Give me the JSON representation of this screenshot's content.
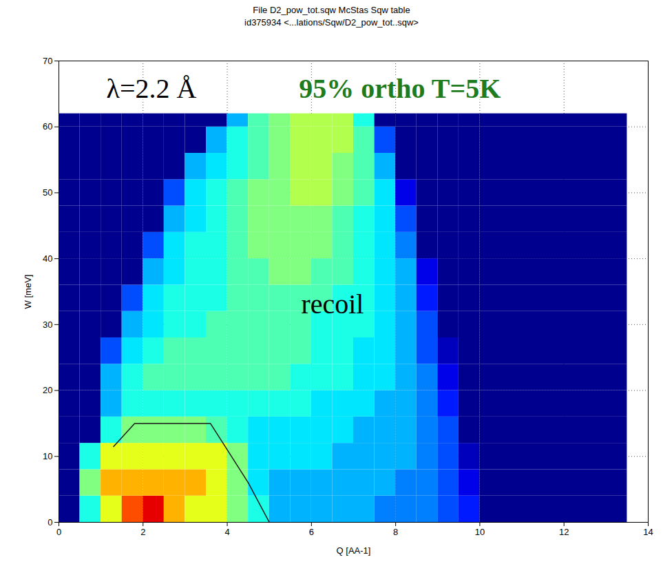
{
  "chart_data": {
    "type": "heatmap",
    "title": "File D2_pow_tot.sqw McStas Sqw table",
    "subtitle": "id375934 <...lations/Sqw/D2_pow_tot..sqw>",
    "x_label": "Q [AA-1]",
    "y_label": "W [meV]",
    "xlim": [
      0,
      14
    ],
    "ylim": [
      0,
      70
    ],
    "xticks": [
      0,
      2,
      4,
      6,
      8,
      10,
      12,
      14
    ],
    "yticks": [
      0,
      10,
      20,
      30,
      40,
      50,
      60,
      70
    ],
    "grid": true,
    "annotations": [
      {
        "text": "λ=2.2 Å",
        "color": "#000000"
      },
      {
        "text": "95% ortho T=5K",
        "color": "#1e7b1e"
      },
      {
        "text": "recoil",
        "color": "#000000"
      }
    ],
    "zlim": [
      0,
      10
    ],
    "cells": {
      "x_edges": [
        0,
        0.5,
        1,
        1.5,
        2,
        2.5,
        3,
        3.5,
        4,
        4.5,
        5,
        5.5,
        6,
        6.5,
        7,
        7.5,
        8,
        8.5,
        9,
        9.5,
        10,
        13.5
      ],
      "y_edges": [
        0,
        4,
        8,
        12,
        16,
        20,
        24,
        28,
        32,
        36,
        40,
        44,
        48,
        52,
        56,
        60,
        62
      ],
      "values": [
        [
          0,
          4,
          6,
          8,
          9,
          7,
          6,
          6,
          5,
          4,
          3,
          3,
          3,
          3,
          3,
          2.5,
          2.5,
          2.5,
          2,
          1.5,
          0
        ],
        [
          0,
          5,
          7,
          7,
          7,
          7,
          7,
          6,
          5,
          3.5,
          3,
          3,
          3,
          3,
          3,
          3,
          2.5,
          2.5,
          2,
          1,
          0
        ],
        [
          0,
          4,
          6,
          6,
          6,
          6,
          6,
          6,
          5,
          3.5,
          3.5,
          3.5,
          3.5,
          3,
          3,
          3,
          3,
          2.5,
          2,
          0.5,
          0
        ],
        [
          0,
          0,
          4,
          5,
          5,
          5,
          5,
          4.5,
          4,
          3.5,
          3.5,
          3.5,
          3.5,
          3.5,
          3,
          3,
          3,
          2.5,
          2,
          0,
          0
        ],
        [
          0,
          0,
          3,
          4,
          4,
          4,
          4,
          4,
          4,
          4,
          4,
          4,
          3.5,
          3.5,
          3.5,
          3,
          3,
          2.5,
          1.5,
          0,
          0
        ],
        [
          0,
          0,
          3,
          4,
          4.5,
          4.5,
          4.5,
          4.5,
          4.5,
          4.5,
          4.5,
          4,
          4,
          4,
          3.5,
          3.5,
          3,
          2.5,
          1,
          0,
          0
        ],
        [
          0,
          0,
          2,
          3.5,
          4,
          4.5,
          4.5,
          4.5,
          4.5,
          4.5,
          4.5,
          4.5,
          4,
          4,
          3.5,
          3.5,
          3,
          2,
          0.5,
          0,
          0
        ],
        [
          0,
          0,
          0,
          3,
          3.5,
          4,
          4,
          4.5,
          4.5,
          4.5,
          4.5,
          4.5,
          4,
          4,
          4,
          3.5,
          3,
          2,
          0,
          0,
          0
        ],
        [
          0,
          0,
          0,
          2,
          3.5,
          4,
          4,
          4,
          4.5,
          4.5,
          4.5,
          4.5,
          4.5,
          4,
          4,
          3.5,
          3,
          1.5,
          0,
          0,
          0
        ],
        [
          0,
          0,
          0,
          0,
          3,
          3.5,
          4,
          4,
          4.5,
          4.5,
          5,
          5,
          4.5,
          4.5,
          4,
          3.5,
          3,
          1,
          0,
          0,
          0
        ],
        [
          0,
          0,
          0,
          0,
          2,
          3.5,
          4,
          4,
          4.5,
          5,
          5,
          5,
          5,
          4.5,
          4,
          3.5,
          2.5,
          0,
          0,
          0,
          0
        ],
        [
          0,
          0,
          0,
          0,
          0,
          3,
          3.5,
          4,
          4.5,
          5,
          5,
          5,
          5,
          4.5,
          4,
          3.5,
          2,
          0,
          0,
          0,
          0
        ],
        [
          0,
          0,
          0,
          0,
          0,
          2,
          3.5,
          4,
          4.5,
          5,
          5,
          5.5,
          5.5,
          5,
          4.5,
          3.5,
          1,
          0,
          0,
          0,
          0
        ],
        [
          0,
          0,
          0,
          0,
          0,
          0,
          3,
          3.5,
          4,
          4.5,
          5,
          5.5,
          5.5,
          5,
          4.5,
          3,
          0,
          0,
          0,
          0,
          0
        ],
        [
          0,
          0,
          0,
          0,
          0,
          0,
          0,
          3,
          4,
          4.5,
          5,
          5.5,
          5.5,
          5.5,
          4.5,
          2,
          0,
          0,
          0,
          0,
          0
        ],
        [
          0,
          0,
          0,
          0,
          0,
          0,
          0,
          0,
          3,
          4.5,
          5,
          5.5,
          5.5,
          5.5,
          4,
          0,
          0,
          0,
          0,
          0,
          0
        ]
      ]
    },
    "curve": {
      "x": [
        1.3,
        1.8,
        3.6,
        4.0,
        4.5,
        5.0
      ],
      "y": [
        11.5,
        15,
        15,
        11,
        6,
        0
      ],
      "color": "#1a1a1a"
    }
  }
}
